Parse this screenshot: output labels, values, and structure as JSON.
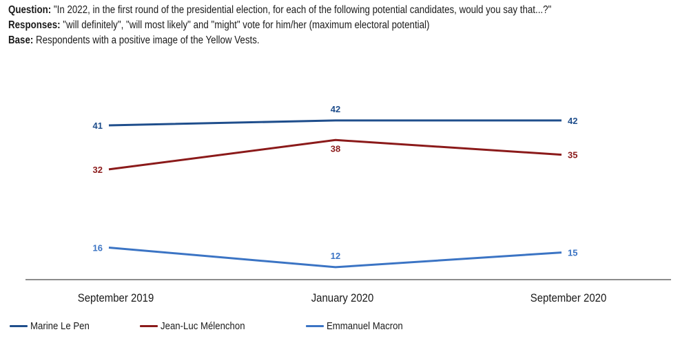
{
  "header": {
    "question_label": "Question:",
    "question_text": " \"In 2022, in the first round of the presidential election, for each of the following potential candidates, would you say that...?\"",
    "responses_label": "Responses:",
    "responses_text": " \"will definitely\", \"will most likely\" and \"might\" vote for him/her (maximum electoral potential)",
    "base_label": "Base:",
    "base_text": " Respondents with a positive image of the Yellow Vests."
  },
  "chart_data": {
    "type": "line",
    "title": "",
    "xlabel": "",
    "ylabel": "",
    "categories": [
      "September 2019",
      "January 2020",
      "September 2020"
    ],
    "series": [
      {
        "name": "Marine Le Pen",
        "color": "#1f4e8c",
        "values": [
          41,
          42,
          42
        ]
      },
      {
        "name": "Jean-Luc Mélenchon",
        "color": "#8b1a1a",
        "values": [
          32,
          38,
          35
        ]
      },
      {
        "name": "Emmanuel Macron",
        "color": "#3b74c4",
        "values": [
          16,
          12,
          15
        ]
      }
    ],
    "grid": false,
    "legend_position": "bottom-left",
    "label_positions": [
      [
        "left",
        "above",
        "right"
      ],
      [
        "left",
        "below",
        "right"
      ],
      [
        "left",
        "above",
        "right"
      ]
    ]
  }
}
